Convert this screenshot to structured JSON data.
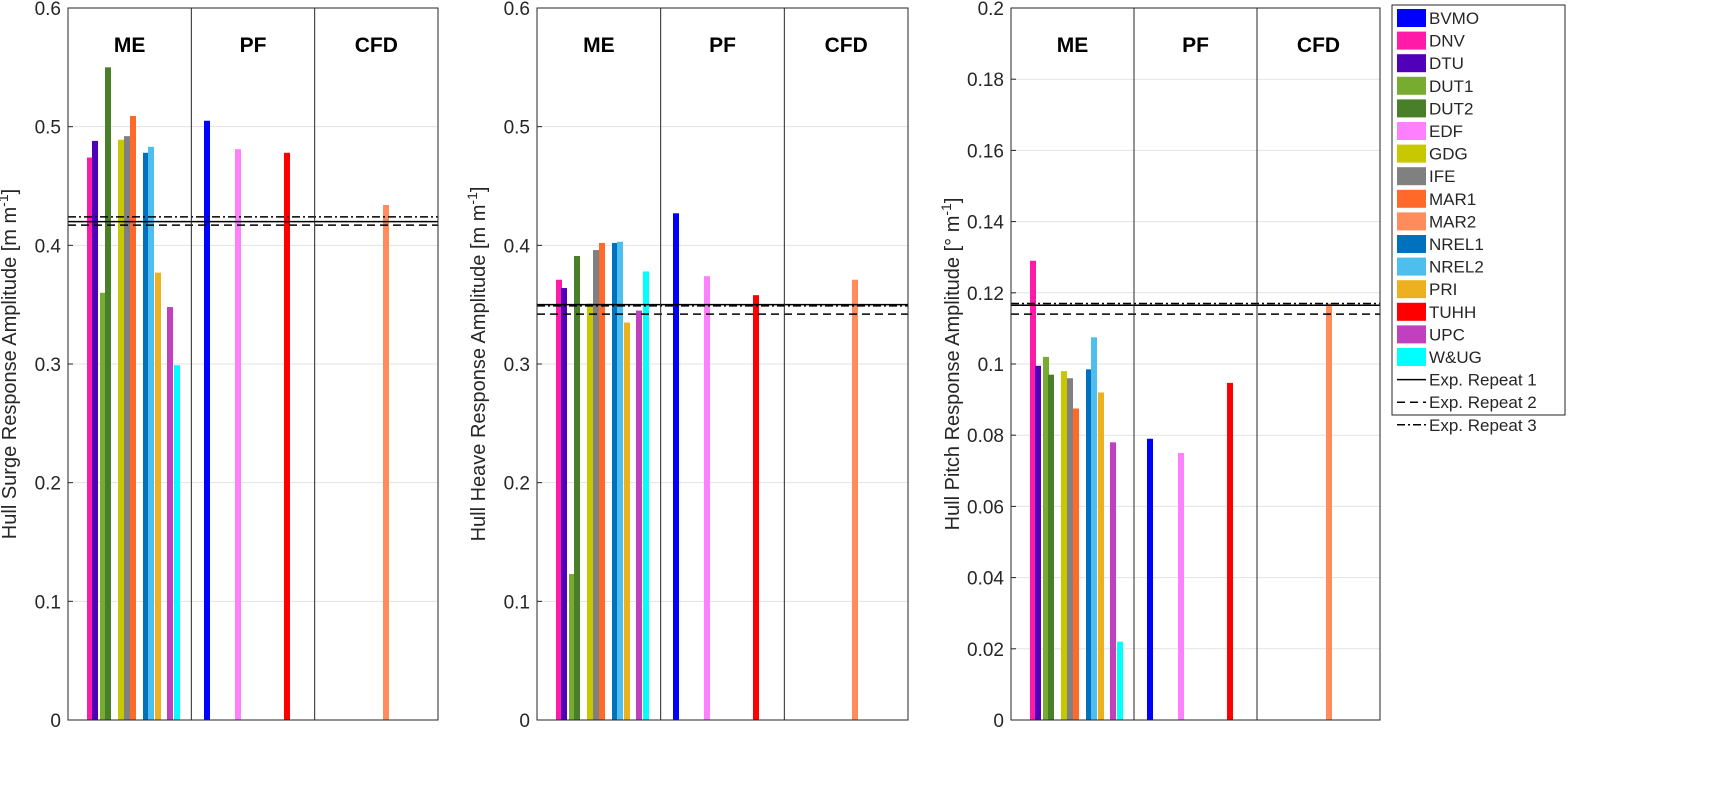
{
  "chart_data": {
    "type": "bar",
    "participants": [
      {
        "name": "BVMO",
        "color": "#0000ff"
      },
      {
        "name": "DNV",
        "color": "#ff1aa8"
      },
      {
        "name": "DTU",
        "color": "#5000b8"
      },
      {
        "name": "DUT1",
        "color": "#77ac30"
      },
      {
        "name": "DUT2",
        "color": "#4a7f2a"
      },
      {
        "name": "EDF",
        "color": "#ff80ff"
      },
      {
        "name": "GDG",
        "color": "#c8c800"
      },
      {
        "name": "IFE",
        "color": "#808080"
      },
      {
        "name": "MAR1",
        "color": "#ff6a2a"
      },
      {
        "name": "MAR2",
        "color": "#ff8c5a"
      },
      {
        "name": "NREL1",
        "color": "#0072bd"
      },
      {
        "name": "NREL2",
        "color": "#4dbeee"
      },
      {
        "name": "PRI",
        "color": "#edb120"
      },
      {
        "name": "TUHH",
        "color": "#ff0000"
      },
      {
        "name": "UPC",
        "color": "#c040c0"
      },
      {
        "name": "W&UG",
        "color": "#00ffff"
      }
    ],
    "experiments": [
      {
        "name": "Exp. Repeat 1",
        "style": "solid"
      },
      {
        "name": "Exp. Repeat 2",
        "style": "dashed"
      },
      {
        "name": "Exp. Repeat 3",
        "style": "dashdot"
      }
    ],
    "sections": [
      "ME",
      "PF",
      "CFD"
    ],
    "panels": [
      {
        "ylabel": "Hull Surge Response Amplitude [m m",
        "ylabel_sup": "-1",
        "ylabel_end": "]",
        "ylim": [
          0,
          0.6
        ],
        "yticks": [
          "0",
          "0.1",
          "0.2",
          "0.3",
          "0.4",
          "0.5",
          "0.6"
        ],
        "tickvals": [
          0,
          0.1,
          0.2,
          0.3,
          0.4,
          0.5,
          0.6
        ],
        "values": {
          "DNV": 0.474,
          "DTU": 0.488,
          "DUT1": 0.36,
          "DUT2": 0.55,
          "GDG": 0.489,
          "IFE": 0.492,
          "MAR1": 0.509,
          "NREL1": 0.478,
          "NREL2": 0.483,
          "PRI": 0.377,
          "UPC": 0.348,
          "W&UG": 0.299,
          "BVMO": 0.505,
          "EDF": 0.481,
          "TUHH": 0.478,
          "MAR2": 0.434
        },
        "experiment_values": [
          0.42,
          0.417,
          0.424
        ]
      },
      {
        "ylabel": "Hull Heave Response Amplitude [m m",
        "ylabel_sup": "-1",
        "ylabel_end": "]",
        "ylim": [
          0,
          0.6
        ],
        "yticks": [
          "0",
          "0.1",
          "0.2",
          "0.3",
          "0.4",
          "0.5",
          "0.6"
        ],
        "tickvals": [
          0,
          0.1,
          0.2,
          0.3,
          0.4,
          0.5,
          0.6
        ],
        "values": {
          "DNV": 0.371,
          "DTU": 0.364,
          "DUT1": 0.123,
          "DUT2": 0.391,
          "GDG": 0.351,
          "IFE": 0.396,
          "MAR1": 0.402,
          "NREL1": 0.402,
          "NREL2": 0.403,
          "PRI": 0.335,
          "UPC": 0.345,
          "W&UG": 0.378,
          "BVMO": 0.427,
          "EDF": 0.374,
          "TUHH": 0.358,
          "MAR2": 0.371
        },
        "experiment_values": [
          0.35,
          0.342,
          0.349
        ]
      },
      {
        "ylabel": "Hull Pitch Response Amplitude [° m",
        "ylabel_sup": "-1",
        "ylabel_end": "]",
        "ylim": [
          0,
          0.2
        ],
        "yticks": [
          "0",
          "0.02",
          "0.04",
          "0.06",
          "0.08",
          "0.1",
          "0.12",
          "0.14",
          "0.16",
          "0.18",
          "0.2"
        ],
        "tickvals": [
          0,
          0.02,
          0.04,
          0.06,
          0.08,
          0.1,
          0.12,
          0.14,
          0.16,
          0.18,
          0.2
        ],
        "values": {
          "DNV": 0.129,
          "DTU": 0.0995,
          "DUT1": 0.102,
          "DUT2": 0.097,
          "GDG": 0.098,
          "IFE": 0.096,
          "MAR1": 0.0875,
          "NREL1": 0.0985,
          "NREL2": 0.1075,
          "PRI": 0.092,
          "UPC": 0.078,
          "W&UG": 0.022,
          "BVMO": 0.079,
          "EDF": 0.075,
          "TUHH": 0.0947,
          "MAR2": 0.117
        },
        "experiment_values": [
          0.1165,
          0.114,
          0.117
        ]
      }
    ]
  }
}
